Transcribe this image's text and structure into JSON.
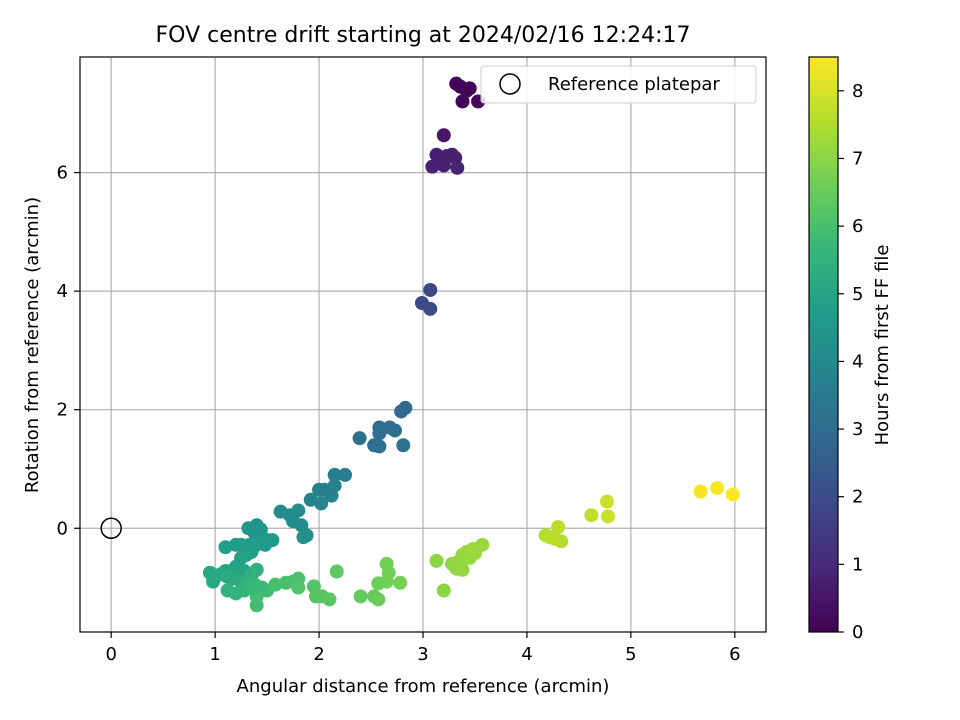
{
  "chart_data": {
    "type": "scatter",
    "title": "FOV centre drift starting at 2024/02/16 12:24:17",
    "xlabel": "Angular distance from reference (arcmin)",
    "ylabel": "Rotation from reference (arcmin)",
    "xlim": [
      -0.3,
      6.3
    ],
    "ylim": [
      -1.75,
      7.95
    ],
    "xticks": [
      0,
      1,
      2,
      3,
      4,
      5,
      6
    ],
    "xtick_labels": [
      "0",
      "1",
      "2",
      "3",
      "4",
      "5",
      "6"
    ],
    "yticks": [
      0,
      2,
      4,
      6
    ],
    "ytick_labels": [
      "0",
      "2",
      "4",
      "6"
    ],
    "grid": true,
    "legend": {
      "position": "top-right",
      "entries": [
        {
          "label": "Reference platepar",
          "marker": "open-circle"
        }
      ]
    },
    "reference_point": {
      "x": 0,
      "y": 0,
      "label": "Reference platepar"
    },
    "colorbar": {
      "label": "Hours from first FF file",
      "colormap": "viridis",
      "range": [
        0,
        8.5
      ],
      "ticks": [
        0,
        1,
        2,
        3,
        4,
        5,
        6,
        7,
        8
      ],
      "tick_labels": [
        "0",
        "1",
        "2",
        "3",
        "4",
        "5",
        "6",
        "7",
        "8"
      ],
      "colormap_stops": [
        "#440154",
        "#482878",
        "#3e4989",
        "#31688e",
        "#26828e",
        "#1f9e89",
        "#35b779",
        "#6ece58",
        "#b5de2b",
        "#fde725"
      ]
    },
    "series": [
      {
        "points": [
          {
            "x": 3.32,
            "y": 7.5,
            "c": 0.05
          },
          {
            "x": 3.36,
            "y": 7.45,
            "c": 0.05
          },
          {
            "x": 3.42,
            "y": 7.38,
            "c": 0.1
          },
          {
            "x": 3.45,
            "y": 7.42,
            "c": 0.1
          },
          {
            "x": 3.38,
            "y": 7.2,
            "c": 0.15
          },
          {
            "x": 3.53,
            "y": 7.2,
            "c": 0.2
          },
          {
            "x": 3.2,
            "y": 6.63,
            "c": 0.5
          },
          {
            "x": 3.13,
            "y": 6.3,
            "c": 0.7
          },
          {
            "x": 3.23,
            "y": 6.28,
            "c": 0.7
          },
          {
            "x": 3.28,
            "y": 6.3,
            "c": 0.75
          },
          {
            "x": 3.31,
            "y": 6.25,
            "c": 0.75
          },
          {
            "x": 3.09,
            "y": 6.1,
            "c": 0.8
          },
          {
            "x": 3.2,
            "y": 6.12,
            "c": 0.8
          },
          {
            "x": 3.33,
            "y": 6.08,
            "c": 0.85
          },
          {
            "x": 3.07,
            "y": 4.02,
            "c": 1.85
          },
          {
            "x": 2.99,
            "y": 3.8,
            "c": 1.9
          },
          {
            "x": 3.07,
            "y": 3.7,
            "c": 1.95
          },
          {
            "x": 2.83,
            "y": 2.03,
            "c": 2.9
          },
          {
            "x": 2.79,
            "y": 1.97,
            "c": 2.9
          },
          {
            "x": 2.58,
            "y": 1.7,
            "c": 3.0
          },
          {
            "x": 2.68,
            "y": 1.7,
            "c": 3.0
          },
          {
            "x": 2.73,
            "y": 1.65,
            "c": 3.05
          },
          {
            "x": 2.58,
            "y": 1.6,
            "c": 3.05
          },
          {
            "x": 2.39,
            "y": 1.52,
            "c": 3.1
          },
          {
            "x": 2.53,
            "y": 1.4,
            "c": 3.15
          },
          {
            "x": 2.58,
            "y": 1.38,
            "c": 3.15
          },
          {
            "x": 2.81,
            "y": 1.4,
            "c": 3.2
          },
          {
            "x": 2.15,
            "y": 0.9,
            "c": 3.6
          },
          {
            "x": 2.25,
            "y": 0.9,
            "c": 3.6
          },
          {
            "x": 2.0,
            "y": 0.65,
            "c": 3.7
          },
          {
            "x": 2.05,
            "y": 0.65,
            "c": 3.7
          },
          {
            "x": 2.12,
            "y": 0.55,
            "c": 3.75
          },
          {
            "x": 2.15,
            "y": 0.72,
            "c": 3.75
          },
          {
            "x": 1.92,
            "y": 0.48,
            "c": 3.8
          },
          {
            "x": 2.02,
            "y": 0.42,
            "c": 3.85
          },
          {
            "x": 1.63,
            "y": 0.28,
            "c": 4.05
          },
          {
            "x": 1.72,
            "y": 0.22,
            "c": 4.1
          },
          {
            "x": 1.8,
            "y": 0.3,
            "c": 4.1
          },
          {
            "x": 1.75,
            "y": 0.12,
            "c": 4.15
          },
          {
            "x": 1.83,
            "y": 0.05,
            "c": 4.2
          },
          {
            "x": 1.88,
            "y": -0.12,
            "c": 4.25
          },
          {
            "x": 1.85,
            "y": -0.15,
            "c": 4.25
          },
          {
            "x": 1.4,
            "y": 0.05,
            "c": 4.4
          },
          {
            "x": 1.32,
            "y": 0.0,
            "c": 4.45
          },
          {
            "x": 1.44,
            "y": -0.02,
            "c": 4.45
          },
          {
            "x": 1.38,
            "y": -0.08,
            "c": 4.5
          },
          {
            "x": 1.45,
            "y": -0.15,
            "c": 4.5
          },
          {
            "x": 1.5,
            "y": -0.2,
            "c": 4.55
          },
          {
            "x": 1.55,
            "y": -0.2,
            "c": 4.55
          },
          {
            "x": 1.48,
            "y": -0.28,
            "c": 4.6
          },
          {
            "x": 1.38,
            "y": -0.3,
            "c": 4.6
          },
          {
            "x": 1.33,
            "y": -0.28,
            "c": 4.65
          },
          {
            "x": 1.25,
            "y": -0.28,
            "c": 4.7
          },
          {
            "x": 1.2,
            "y": -0.28,
            "c": 4.7
          },
          {
            "x": 1.1,
            "y": -0.32,
            "c": 4.75
          },
          {
            "x": 1.3,
            "y": -0.45,
            "c": 4.8
          },
          {
            "x": 1.35,
            "y": -0.4,
            "c": 4.8
          },
          {
            "x": 1.25,
            "y": -0.5,
            "c": 4.85
          },
          {
            "x": 1.2,
            "y": -0.65,
            "c": 4.9
          },
          {
            "x": 1.28,
            "y": -0.72,
            "c": 4.95
          },
          {
            "x": 1.1,
            "y": -0.72,
            "c": 5.0
          },
          {
            "x": 0.95,
            "y": -0.75,
            "c": 5.05
          },
          {
            "x": 0.98,
            "y": -0.9,
            "c": 5.1
          },
          {
            "x": 1.05,
            "y": -0.78,
            "c": 5.15
          },
          {
            "x": 1.12,
            "y": -0.82,
            "c": 5.2
          },
          {
            "x": 1.18,
            "y": -0.85,
            "c": 5.25
          },
          {
            "x": 1.25,
            "y": -0.9,
            "c": 5.3
          },
          {
            "x": 1.32,
            "y": -0.88,
            "c": 5.35
          },
          {
            "x": 1.35,
            "y": -0.8,
            "c": 5.4
          },
          {
            "x": 1.4,
            "y": -0.7,
            "c": 5.45
          },
          {
            "x": 1.12,
            "y": -1.05,
            "c": 5.5
          },
          {
            "x": 1.2,
            "y": -1.1,
            "c": 5.55
          },
          {
            "x": 1.28,
            "y": -1.05,
            "c": 5.6
          },
          {
            "x": 1.33,
            "y": -1.0,
            "c": 5.65
          },
          {
            "x": 1.38,
            "y": -0.95,
            "c": 5.7
          },
          {
            "x": 1.45,
            "y": -1.0,
            "c": 5.75
          },
          {
            "x": 1.5,
            "y": -1.05,
            "c": 5.8
          },
          {
            "x": 1.4,
            "y": -1.15,
            "c": 5.85
          },
          {
            "x": 1.4,
            "y": -1.3,
            "c": 5.9
          },
          {
            "x": 1.58,
            "y": -0.95,
            "c": 5.95
          },
          {
            "x": 1.68,
            "y": -0.92,
            "c": 6.0
          },
          {
            "x": 1.75,
            "y": -0.9,
            "c": 6.0
          },
          {
            "x": 1.8,
            "y": -0.85,
            "c": 6.05
          },
          {
            "x": 1.8,
            "y": -1.0,
            "c": 6.1
          },
          {
            "x": 1.95,
            "y": -0.98,
            "c": 6.15
          },
          {
            "x": 1.97,
            "y": -1.15,
            "c": 6.2
          },
          {
            "x": 2.03,
            "y": -1.15,
            "c": 6.25
          },
          {
            "x": 2.1,
            "y": -1.2,
            "c": 6.3
          },
          {
            "x": 2.17,
            "y": -0.73,
            "c": 6.35
          },
          {
            "x": 2.4,
            "y": -1.15,
            "c": 6.45
          },
          {
            "x": 2.53,
            "y": -1.15,
            "c": 6.5
          },
          {
            "x": 2.57,
            "y": -1.2,
            "c": 6.55
          },
          {
            "x": 2.57,
            "y": -0.93,
            "c": 6.6
          },
          {
            "x": 2.65,
            "y": -0.9,
            "c": 6.6
          },
          {
            "x": 2.65,
            "y": -0.6,
            "c": 6.65
          },
          {
            "x": 2.67,
            "y": -0.75,
            "c": 6.65
          },
          {
            "x": 2.78,
            "y": -0.92,
            "c": 6.7
          },
          {
            "x": 3.13,
            "y": -0.55,
            "c": 7.0
          },
          {
            "x": 3.2,
            "y": -1.05,
            "c": 7.0
          },
          {
            "x": 3.28,
            "y": -0.6,
            "c": 7.05
          },
          {
            "x": 3.32,
            "y": -0.68,
            "c": 7.05
          },
          {
            "x": 3.35,
            "y": -0.55,
            "c": 7.1
          },
          {
            "x": 3.38,
            "y": -0.7,
            "c": 7.1
          },
          {
            "x": 3.38,
            "y": -0.45,
            "c": 7.1
          },
          {
            "x": 3.42,
            "y": -0.4,
            "c": 7.15
          },
          {
            "x": 3.45,
            "y": -0.5,
            "c": 7.15
          },
          {
            "x": 3.48,
            "y": -0.35,
            "c": 7.2
          },
          {
            "x": 3.5,
            "y": -0.42,
            "c": 7.2
          },
          {
            "x": 3.57,
            "y": -0.28,
            "c": 7.2
          },
          {
            "x": 4.18,
            "y": -0.12,
            "c": 7.55
          },
          {
            "x": 4.22,
            "y": -0.15,
            "c": 7.55
          },
          {
            "x": 4.27,
            "y": -0.18,
            "c": 7.6
          },
          {
            "x": 4.3,
            "y": 0.02,
            "c": 7.6
          },
          {
            "x": 4.33,
            "y": -0.22,
            "c": 7.6
          },
          {
            "x": 4.62,
            "y": 0.22,
            "c": 7.7
          },
          {
            "x": 4.77,
            "y": 0.45,
            "c": 7.8
          },
          {
            "x": 4.78,
            "y": 0.2,
            "c": 7.8
          },
          {
            "x": 5.67,
            "y": 0.62,
            "c": 8.35
          },
          {
            "x": 5.83,
            "y": 0.68,
            "c": 8.4
          },
          {
            "x": 5.98,
            "y": 0.57,
            "c": 8.45
          }
        ]
      }
    ]
  }
}
